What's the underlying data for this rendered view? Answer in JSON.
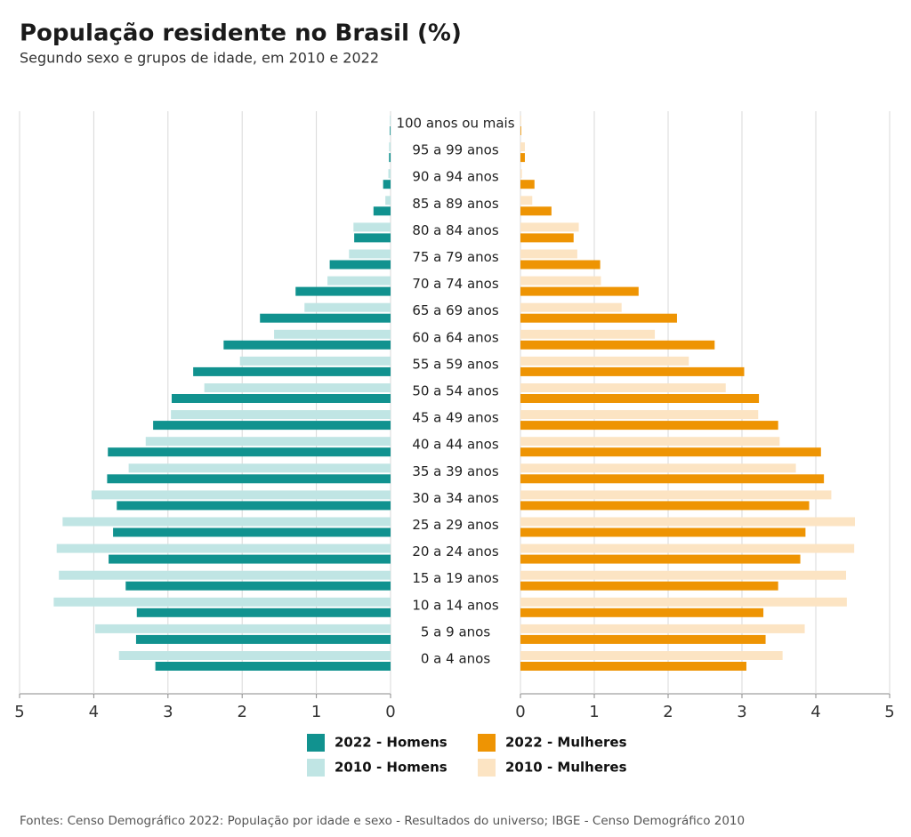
{
  "chart_data": {
    "type": "pyramid",
    "title": "População residente no Brasil (%)",
    "subtitle": "Segundo sexo e grupos de idade, em 2010 e 2022",
    "source": "Fontes: Censo Demográfico 2022: População por idade e sexo - Resultados do universo; IBGE - Censo Demográfico 2010",
    "categories": [
      "0 a 4 anos",
      "5 a 9 anos",
      "10 a 14 anos",
      "15 a 19 anos",
      "20 a 24 anos",
      "25 a 29 anos",
      "30 a 34 anos",
      "35 a 39 anos",
      "40 a 44 anos",
      "45 a 49 anos",
      "50 a 54 anos",
      "55 a 59 anos",
      "60 a 64 anos",
      "65 a 69 anos",
      "70 a 74 anos",
      "75 a 79 anos",
      "80 a 84 anos",
      "85 a 89 anos",
      "90 a 94 anos",
      "95 a 99 anos",
      "100 anos ou mais"
    ],
    "xlim": [
      0,
      5
    ],
    "xticks": [
      0,
      1,
      2,
      3,
      4,
      5
    ],
    "grid": true,
    "series": [
      {
        "name": "2022 - Homens",
        "color": "#11928f",
        "side": "left",
        "year": "2022",
        "values": [
          3.17,
          3.43,
          3.42,
          3.57,
          3.8,
          3.74,
          3.69,
          3.82,
          3.81,
          3.2,
          2.95,
          2.66,
          2.25,
          1.76,
          1.28,
          0.82,
          0.49,
          0.23,
          0.1,
          0.02,
          0.01
        ]
      },
      {
        "name": "2022 - Mulheres",
        "color": "#ee9403",
        "side": "right",
        "year": "2022",
        "values": [
          3.06,
          3.32,
          3.29,
          3.49,
          3.79,
          3.86,
          3.91,
          4.11,
          4.07,
          3.49,
          3.23,
          3.03,
          2.63,
          2.12,
          1.6,
          1.08,
          0.72,
          0.42,
          0.19,
          0.06,
          0.01
        ]
      },
      {
        "name": "2010 - Homens",
        "color": "#c0e5e4",
        "side": "left",
        "year": "2010",
        "values": [
          3.66,
          3.98,
          4.54,
          4.47,
          4.5,
          4.42,
          4.03,
          3.53,
          3.3,
          2.96,
          2.51,
          2.03,
          1.57,
          1.16,
          0.85,
          0.56,
          0.5,
          0.07,
          0.03,
          0.02,
          0.01
        ]
      },
      {
        "name": "2010 - Mulheres",
        "color": "#fce4c3",
        "side": "right",
        "year": "2010",
        "values": [
          3.55,
          3.85,
          4.42,
          4.41,
          4.52,
          4.53,
          4.21,
          3.73,
          3.51,
          3.22,
          2.78,
          2.28,
          1.82,
          1.37,
          1.09,
          0.77,
          0.79,
          0.16,
          0.02,
          0.06,
          0.01
        ]
      }
    ]
  }
}
